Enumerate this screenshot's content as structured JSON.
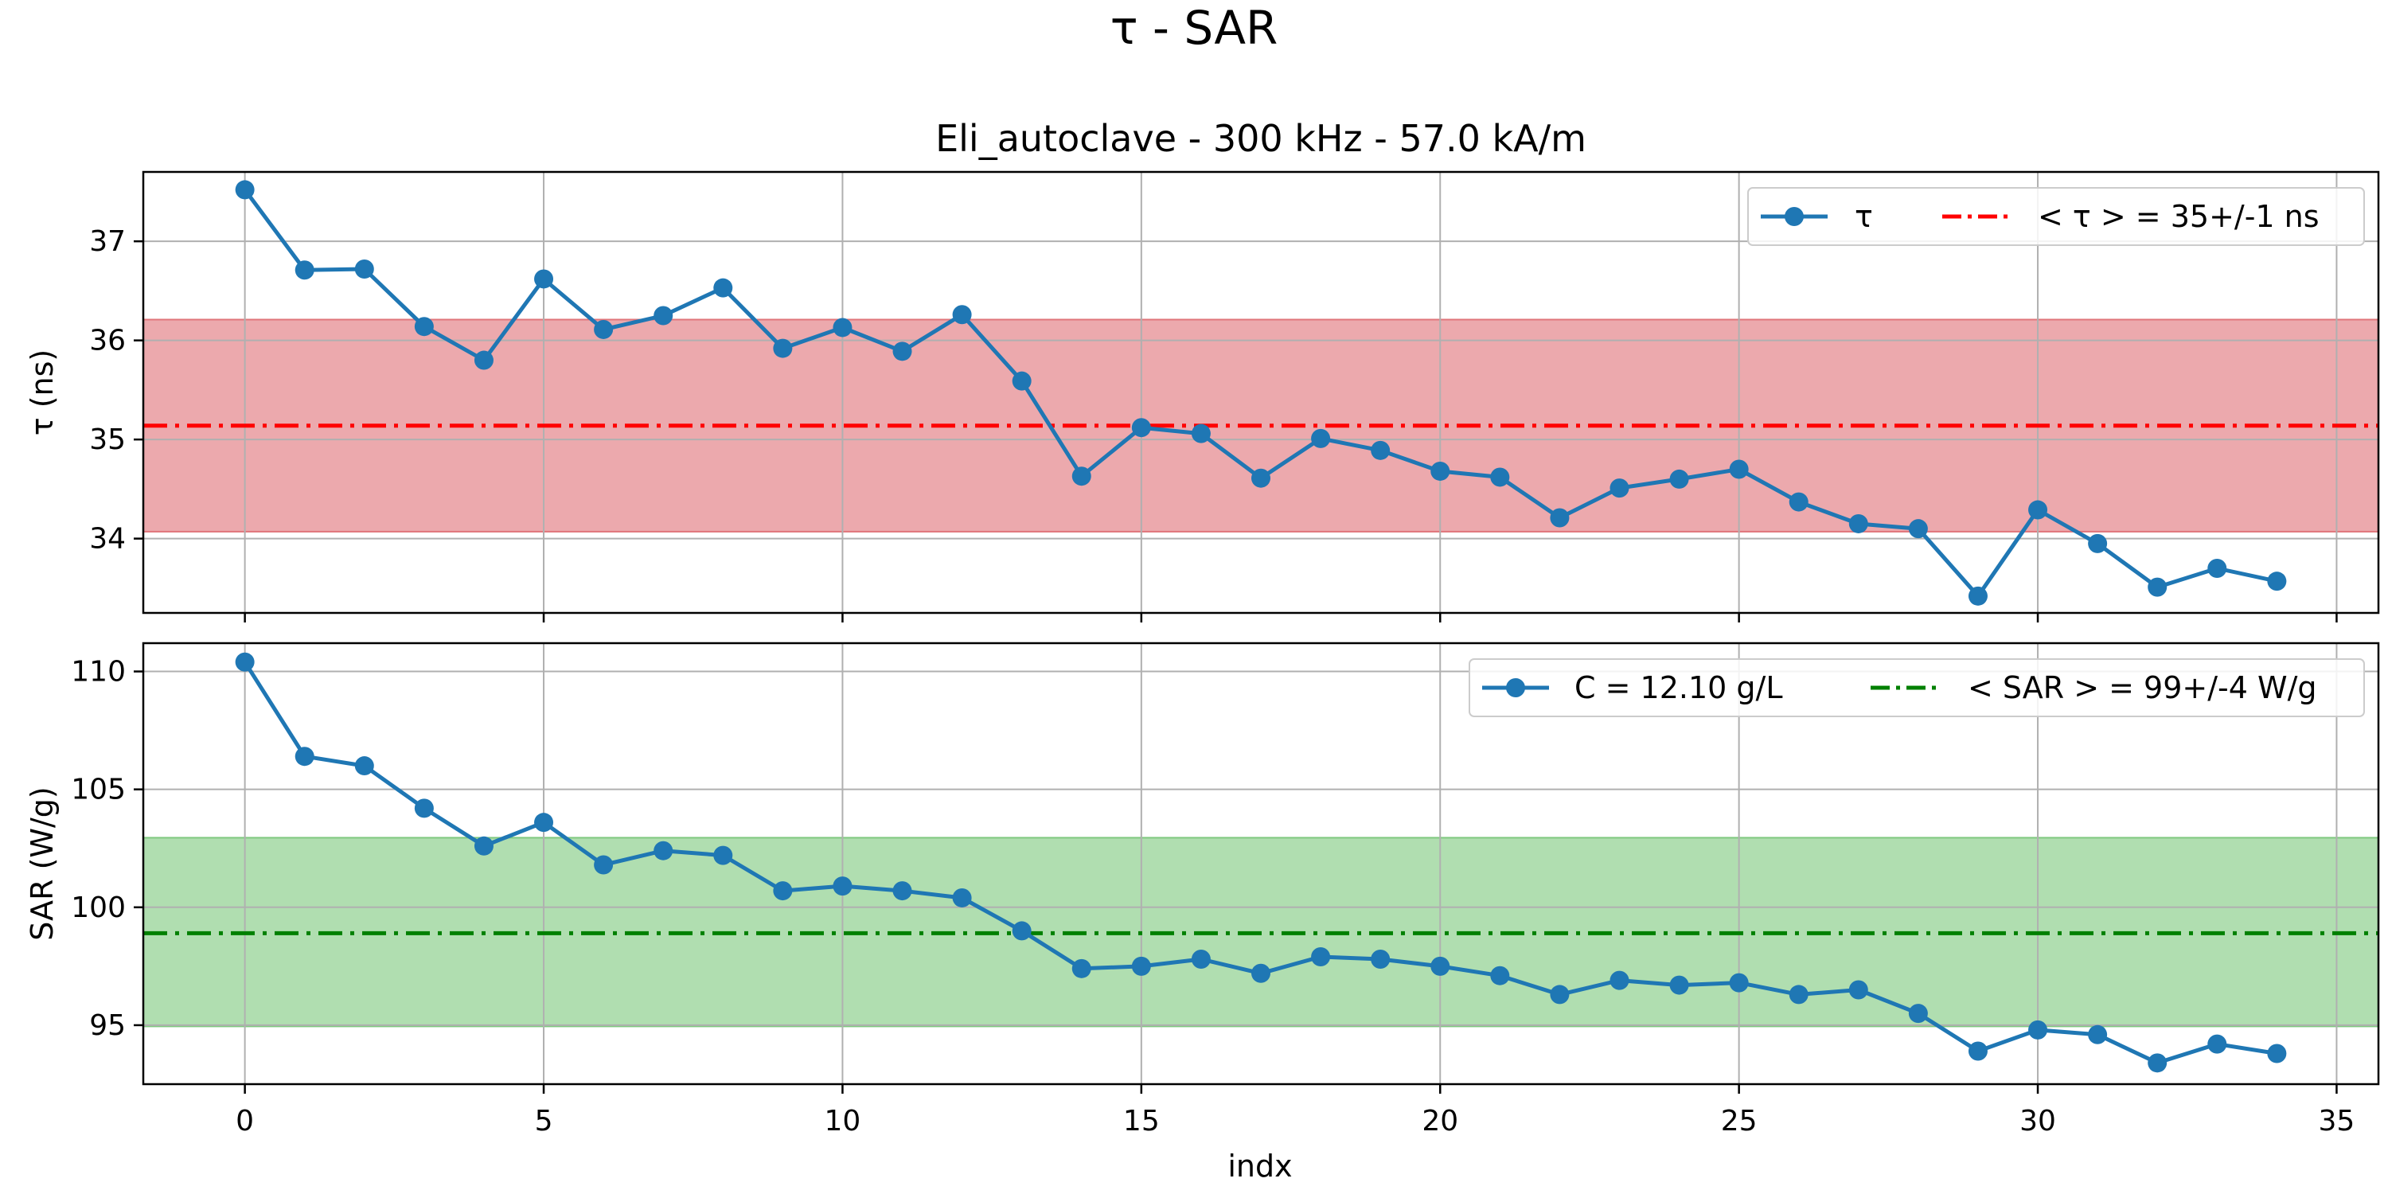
{
  "chart_data": {
    "suptitle": "τ - SAR",
    "x": [
      0,
      1,
      2,
      3,
      4,
      5,
      6,
      7,
      8,
      9,
      10,
      11,
      12,
      13,
      14,
      15,
      16,
      17,
      18,
      19,
      20,
      21,
      22,
      23,
      24,
      25,
      26,
      27,
      28,
      29,
      30,
      31,
      32,
      33,
      34
    ],
    "xlabel": "indx",
    "xlim": [
      -1.7,
      35.7
    ],
    "xticks": [
      0,
      5,
      10,
      15,
      20,
      25,
      30,
      35
    ],
    "colors": {
      "series": "#1f77b4",
      "tau_mean": "#ff0000",
      "tau_band": "#e0757a",
      "sar_mean": "#008000",
      "sar_band": "#7fc97f"
    },
    "panels": [
      {
        "type": "line",
        "title": "Eli_autoclave - 300 kHz - 57.0 kA/m",
        "ylabel": "τ (ns)",
        "ylim": [
          33.25,
          37.7
        ],
        "yticks": [
          34,
          35,
          36,
          37
        ],
        "grid": true,
        "legend_position": "top-right",
        "series": [
          {
            "name": "τ",
            "marker": "circle",
            "values": [
              37.52,
              36.71,
              36.72,
              36.14,
              35.8,
              36.62,
              36.11,
              36.25,
              36.53,
              35.92,
              36.13,
              35.89,
              36.26,
              35.59,
              34.63,
              35.12,
              35.06,
              34.61,
              35.01,
              34.89,
              34.68,
              34.62,
              34.21,
              34.51,
              34.6,
              34.7,
              34.37,
              34.15,
              34.1,
              33.42,
              34.29,
              33.95,
              33.51,
              33.7,
              33.57
            ]
          }
        ],
        "mean": {
          "label": "< τ > = 35+/-1 ns",
          "value": 35.14,
          "band": [
            34.07,
            36.21
          ],
          "style": "dashdot"
        }
      },
      {
        "type": "line",
        "title": "",
        "ylabel": "SAR (W/g)",
        "ylim": [
          92.5,
          111.2
        ],
        "yticks": [
          95,
          100,
          105,
          110
        ],
        "grid": true,
        "legend_position": "top-right",
        "series": [
          {
            "name": "C = 12.10 g/L",
            "marker": "circle",
            "values": [
              110.4,
              106.4,
              106.0,
              104.2,
              102.6,
              103.6,
              101.8,
              102.4,
              102.2,
              100.7,
              100.9,
              100.7,
              100.4,
              99.0,
              97.4,
              97.5,
              97.8,
              97.2,
              97.9,
              97.8,
              97.5,
              97.1,
              96.3,
              96.9,
              96.7,
              96.8,
              96.3,
              96.5,
              95.5,
              93.9,
              94.8,
              94.6,
              93.4,
              94.2,
              93.8
            ]
          }
        ],
        "mean": {
          "label": "< SAR > = 99+/-4 W/g",
          "value": 98.9,
          "band": [
            94.95,
            102.95
          ],
          "style": "dashdot"
        }
      }
    ]
  }
}
